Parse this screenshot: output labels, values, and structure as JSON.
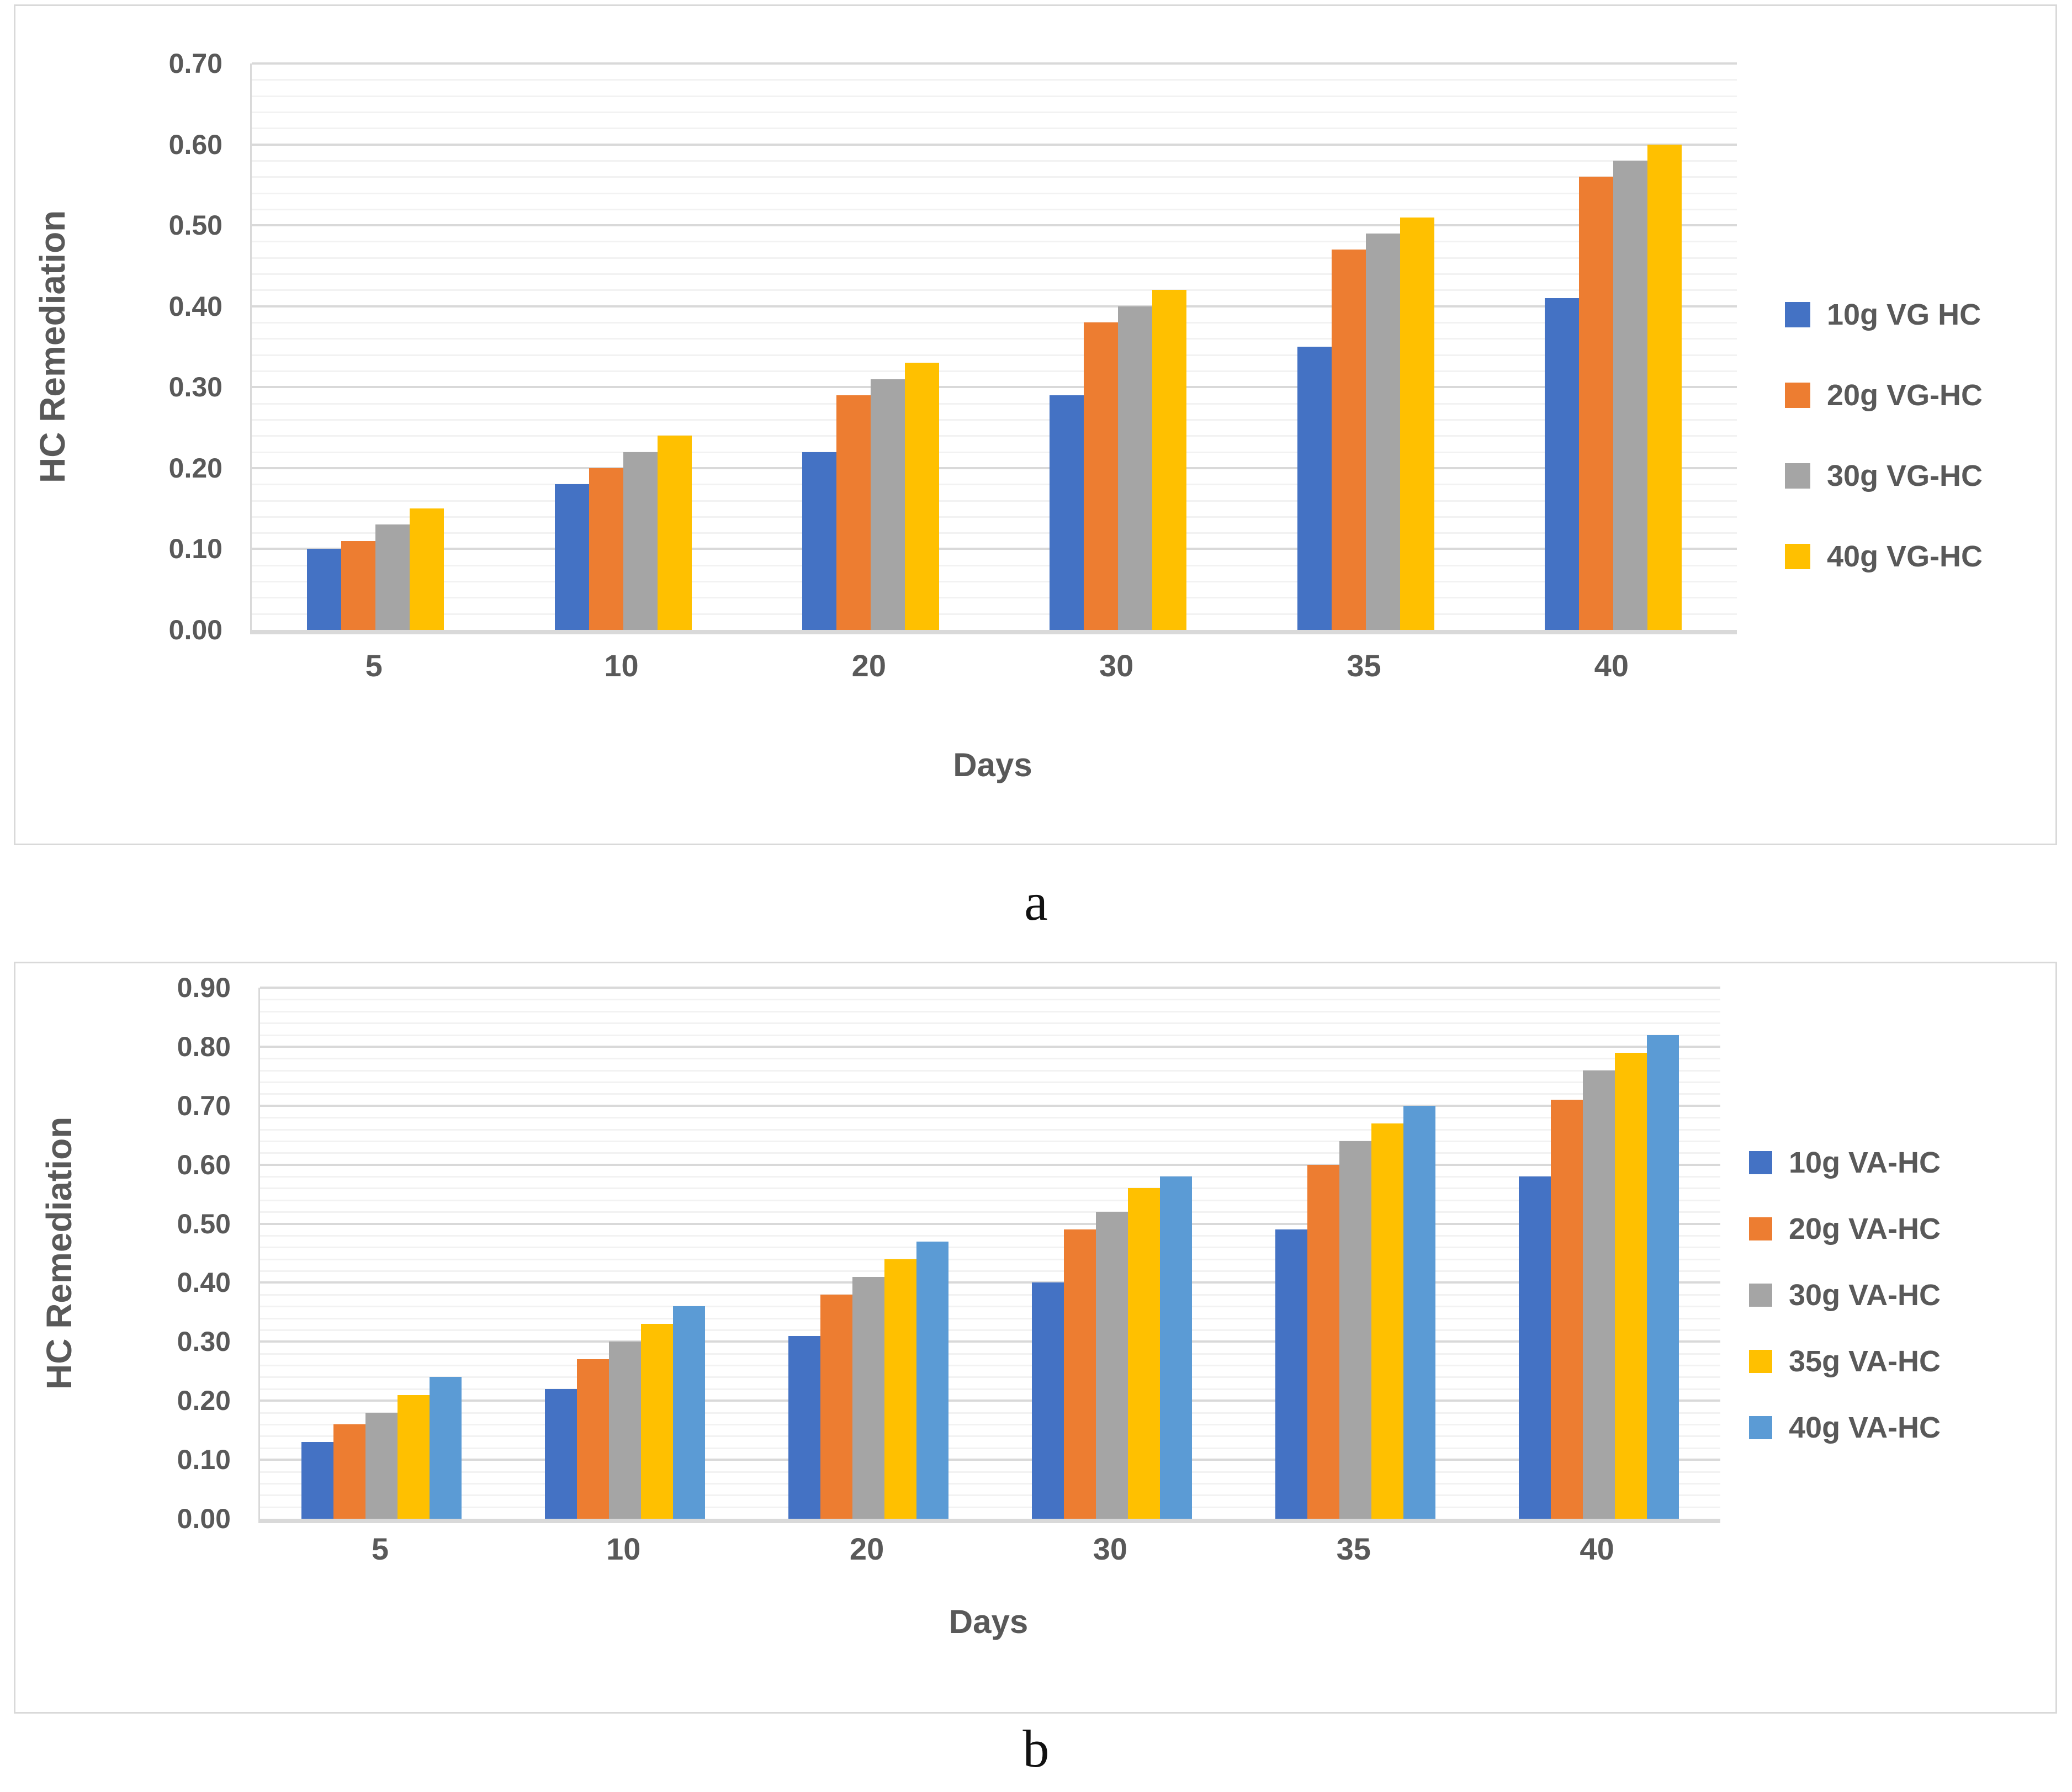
{
  "page": {
    "background": "#ffffff"
  },
  "colors": {
    "gridline_major": "#D9D9D9",
    "gridline_minor": "#F2F2F2",
    "axis_line": "#D9D9D9",
    "chart_text": "#595959",
    "caption_text": "#111111",
    "panel_border": "#D9D9D9"
  },
  "captions": {
    "a": "a",
    "b": "b"
  },
  "chart_data": [
    {
      "type": "bar",
      "panel": "a",
      "ylabel": "HC Remediation",
      "xlabel": "Days",
      "ylim": [
        0,
        0.7
      ],
      "major_unit": 0.1,
      "minor_unit": 0.02,
      "grid": true,
      "legend_position": "right",
      "ytick_labels": [
        "0.00",
        "0.10",
        "0.20",
        "0.30",
        "0.40",
        "0.50",
        "0.60",
        "0.70"
      ],
      "categories": [
        "5",
        "10",
        "20",
        "30",
        "35",
        "40"
      ],
      "series": [
        {
          "name": "10g VG HC",
          "color": "#4472C4",
          "values": [
            0.1,
            0.18,
            0.22,
            0.29,
            0.35,
            0.41
          ]
        },
        {
          "name": "20g VG-HC",
          "color": "#ED7D31",
          "values": [
            0.11,
            0.2,
            0.29,
            0.38,
            0.47,
            0.56
          ]
        },
        {
          "name": "30g VG-HC",
          "color": "#A5A5A5",
          "values": [
            0.13,
            0.22,
            0.31,
            0.4,
            0.49,
            0.58
          ]
        },
        {
          "name": "40g VG-HC",
          "color": "#FFC000",
          "values": [
            0.15,
            0.24,
            0.33,
            0.42,
            0.51,
            0.6
          ]
        }
      ]
    },
    {
      "type": "bar",
      "panel": "b",
      "ylabel": "HC Remediation",
      "xlabel": "Days",
      "ylim": [
        0,
        0.9
      ],
      "major_unit": 0.1,
      "minor_unit": 0.02,
      "grid": true,
      "legend_position": "right",
      "ytick_labels": [
        "0.00",
        "0.10",
        "0.20",
        "0.30",
        "0.40",
        "0.50",
        "0.60",
        "0.70",
        "0.80",
        "0.90"
      ],
      "categories": [
        "5",
        "10",
        "20",
        "30",
        "35",
        "40"
      ],
      "series": [
        {
          "name": "10g VA-HC",
          "color": "#4472C4",
          "values": [
            0.13,
            0.22,
            0.31,
            0.4,
            0.49,
            0.58
          ]
        },
        {
          "name": "20g VA-HC",
          "color": "#ED7D31",
          "values": [
            0.16,
            0.27,
            0.38,
            0.49,
            0.6,
            0.71
          ]
        },
        {
          "name": "30g VA-HC",
          "color": "#A5A5A5",
          "values": [
            0.18,
            0.3,
            0.41,
            0.52,
            0.64,
            0.76
          ]
        },
        {
          "name": "35g VA-HC",
          "color": "#FFC000",
          "values": [
            0.21,
            0.33,
            0.44,
            0.56,
            0.67,
            0.79
          ]
        },
        {
          "name": "40g VA-HC",
          "color": "#5B9BD5",
          "values": [
            0.24,
            0.36,
            0.47,
            0.58,
            0.7,
            0.82
          ]
        }
      ]
    }
  ]
}
